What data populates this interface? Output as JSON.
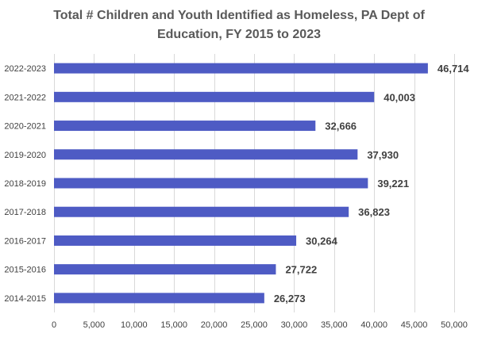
{
  "chart_data": {
    "type": "bar",
    "orientation": "horizontal",
    "title_lines": [
      "Total # Children and Youth Identified as Homeless, PA Dept of",
      "Education, FY 2015 to 2023"
    ],
    "categories": [
      "2022-2023",
      "2021-2022",
      "2020-2021",
      "2019-2020",
      "2018-2019",
      "2017-2018",
      "2016-2017",
      "2015-2016",
      "2014-2015"
    ],
    "values": [
      46714,
      40003,
      32666,
      37930,
      39221,
      36823,
      30264,
      27722,
      26273
    ],
    "data_labels": [
      "46,714",
      "40,003",
      "32,666",
      "37,930",
      "39,221",
      "36,823",
      "30,264",
      "27,722",
      "26,273"
    ],
    "xlim": [
      0,
      50000
    ],
    "x_ticks": [
      0,
      5000,
      10000,
      15000,
      20000,
      25000,
      30000,
      35000,
      40000,
      45000,
      50000
    ],
    "x_tick_labels": [
      "0",
      "5,000",
      "10,000",
      "15,000",
      "20,000",
      "25,000",
      "30,000",
      "35,000",
      "40,000",
      "45,000",
      "50,000"
    ],
    "xlabel": "",
    "ylabel": "",
    "grid": "vertical",
    "bar_color": "#4e5bc4"
  }
}
